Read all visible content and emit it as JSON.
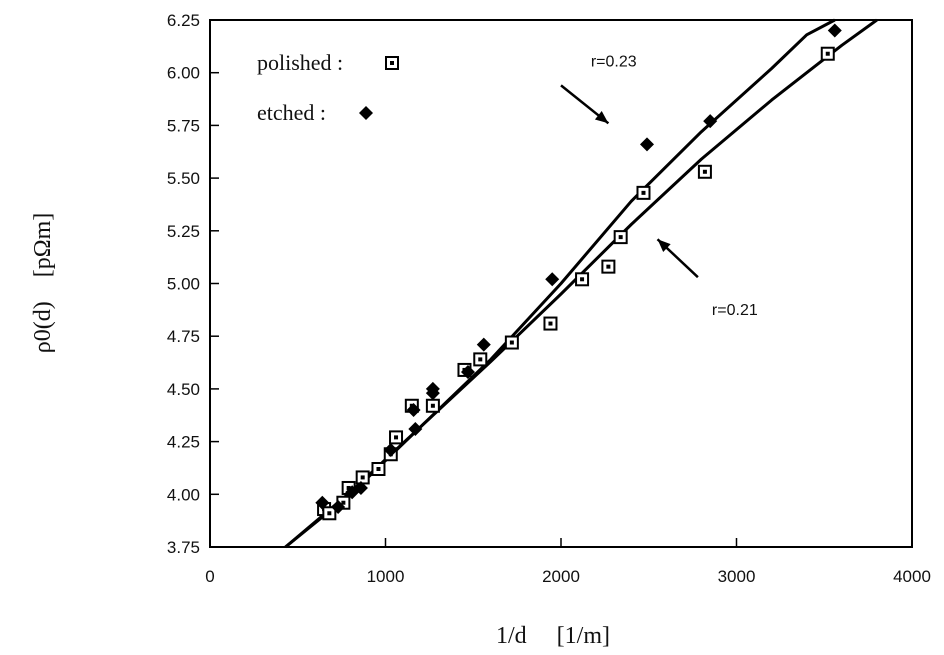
{
  "chart_data": {
    "type": "scatter",
    "xlabel": "1/d     [1/m]",
    "ylabel": "ρ0(d)    [pΩm]",
    "xlim": [
      0,
      4000
    ],
    "ylim": [
      3.75,
      6.25
    ],
    "x_ticks": [
      "0",
      "1000",
      "2000",
      "3000",
      "4000"
    ],
    "y_ticks": [
      "3.75",
      "4.00",
      "4.25",
      "4.50",
      "4.75",
      "5.00",
      "5.25",
      "5.50",
      "5.75",
      "6.00",
      "6.25"
    ],
    "grid": false,
    "legend": [
      {
        "label": "polished :",
        "marker": "open-square"
      },
      {
        "label": "etched :",
        "marker": "filled-diamond"
      }
    ],
    "series": [
      {
        "name": "polished",
        "marker": "open-square",
        "points": [
          [
            650,
            3.93
          ],
          [
            680,
            3.91
          ],
          [
            760,
            3.96
          ],
          [
            790,
            4.03
          ],
          [
            870,
            4.08
          ],
          [
            960,
            4.12
          ],
          [
            1030,
            4.19
          ],
          [
            1060,
            4.27
          ],
          [
            1150,
            4.42
          ],
          [
            1270,
            4.42
          ],
          [
            1450,
            4.59
          ],
          [
            1540,
            4.64
          ],
          [
            1720,
            4.72
          ],
          [
            1940,
            4.81
          ],
          [
            2120,
            5.02
          ],
          [
            2270,
            5.08
          ],
          [
            2340,
            5.22
          ],
          [
            2470,
            5.43
          ],
          [
            2820,
            5.53
          ],
          [
            3520,
            6.09
          ]
        ]
      },
      {
        "name": "etched",
        "marker": "filled-diamond",
        "points": [
          [
            640,
            3.96
          ],
          [
            730,
            3.94
          ],
          [
            810,
            4.01
          ],
          [
            860,
            4.03
          ],
          [
            1030,
            4.21
          ],
          [
            1170,
            4.31
          ],
          [
            1160,
            4.4
          ],
          [
            1270,
            4.48
          ],
          [
            1270,
            4.5
          ],
          [
            1470,
            4.58
          ],
          [
            1560,
            4.71
          ],
          [
            1950,
            5.02
          ],
          [
            2490,
            5.66
          ],
          [
            2850,
            5.77
          ],
          [
            3560,
            6.2
          ]
        ]
      }
    ],
    "fit_lines": [
      {
        "label": "r=0.23",
        "points": [
          [
            430,
            3.75
          ],
          [
            800,
            4.0
          ],
          [
            1200,
            4.32
          ],
          [
            1600,
            4.64
          ],
          [
            2000,
            5.0
          ],
          [
            2400,
            5.39
          ],
          [
            2800,
            5.72
          ],
          [
            3200,
            6.02
          ],
          [
            3400,
            6.18
          ],
          [
            3560,
            6.25
          ]
        ]
      },
      {
        "label": "r=0.21",
        "points": [
          [
            430,
            3.75
          ],
          [
            800,
            4.01
          ],
          [
            1200,
            4.32
          ],
          [
            1600,
            4.63
          ],
          [
            2000,
            4.95
          ],
          [
            2400,
            5.28
          ],
          [
            2800,
            5.59
          ],
          [
            3200,
            5.87
          ],
          [
            3600,
            6.13
          ],
          [
            3800,
            6.25
          ]
        ]
      }
    ],
    "annotations": [
      {
        "text": "r=0.23",
        "x": 2170,
        "y": 6.03,
        "arrow_from": [
          2000,
          5.94
        ],
        "arrow_to": [
          2270,
          5.76
        ]
      },
      {
        "text": "r=0.21",
        "x": 2860,
        "y": 4.85,
        "arrow_from": [
          2780,
          5.03
        ],
        "arrow_to": [
          2550,
          5.21
        ]
      }
    ]
  }
}
